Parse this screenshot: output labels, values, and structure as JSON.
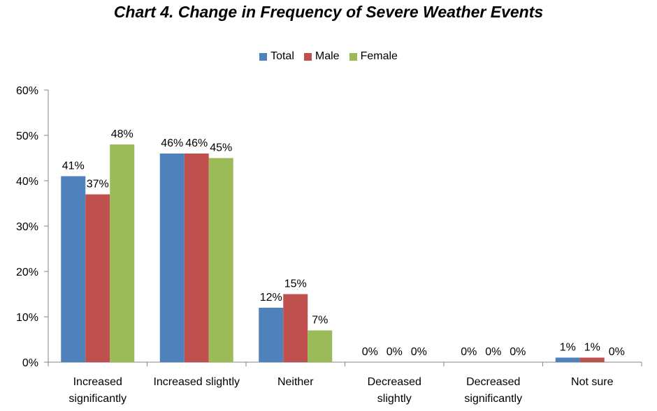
{
  "chart_data": {
    "type": "bar",
    "title": "Chart 4.  Change in Frequency of Severe Weather Events",
    "categories": [
      [
        "Increased",
        "significantly"
      ],
      [
        "Increased slightly"
      ],
      [
        "Neither"
      ],
      [
        "Decreased",
        "slightly"
      ],
      [
        "Decreased",
        "significantly"
      ],
      [
        "Not sure"
      ]
    ],
    "series": [
      {
        "name": "Total",
        "color": "#4F81BD",
        "values": [
          41,
          46,
          12,
          0,
          0,
          1
        ]
      },
      {
        "name": "Male",
        "color": "#C0504D",
        "values": [
          37,
          46,
          15,
          0,
          0,
          1
        ]
      },
      {
        "name": "Female",
        "color": "#9BBB59",
        "values": [
          48,
          45,
          7,
          0,
          0,
          0
        ]
      }
    ],
    "ylim": [
      0,
      60
    ],
    "yticks": [
      "0%",
      "10%",
      "20%",
      "30%",
      "40%",
      "50%",
      "60%"
    ],
    "ytick_values": [
      0,
      10,
      20,
      30,
      40,
      50,
      60
    ],
    "value_suffix": "%",
    "legend_position": "top-center",
    "grid": false
  }
}
